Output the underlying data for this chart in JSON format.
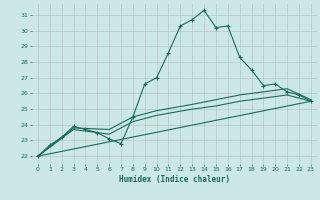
{
  "xlabel": "Humidex (Indice chaleur)",
  "background_color": "#cce8e4",
  "grid_color": "#b8c8c4",
  "line_color": "#1a6b5a",
  "xlim": [
    -0.5,
    23.5
  ],
  "ylim": [
    21.5,
    31.7
  ],
  "yticks": [
    22,
    23,
    24,
    25,
    26,
    27,
    28,
    29,
    30,
    31
  ],
  "xticks": [
    0,
    1,
    2,
    3,
    4,
    5,
    6,
    7,
    8,
    9,
    10,
    11,
    12,
    13,
    14,
    15,
    16,
    17,
    18,
    19,
    20,
    21,
    22,
    23
  ],
  "series1_x": [
    0,
    1,
    2,
    3,
    4,
    5,
    6,
    7,
    8,
    9,
    10,
    11,
    12,
    13,
    14,
    15,
    16,
    17,
    18,
    19,
    20,
    21,
    22,
    23
  ],
  "series1_y": [
    22.0,
    22.7,
    23.2,
    23.9,
    23.7,
    23.5,
    23.1,
    22.8,
    24.5,
    26.6,
    27.0,
    28.6,
    30.3,
    30.7,
    31.3,
    30.2,
    30.3,
    28.3,
    27.5,
    26.5,
    26.6,
    26.1,
    25.9,
    25.5
  ],
  "series2_x": [
    0,
    23
  ],
  "series2_y": [
    22.0,
    25.5
  ],
  "series3_x": [
    0,
    3,
    6,
    8,
    10,
    13,
    15,
    17,
    19,
    21,
    23
  ],
  "series3_y": [
    22.0,
    23.7,
    23.4,
    24.2,
    24.6,
    25.0,
    25.2,
    25.5,
    25.7,
    25.9,
    25.5
  ],
  "series4_x": [
    0,
    3,
    6,
    8,
    10,
    13,
    15,
    17,
    19,
    21,
    23
  ],
  "series4_y": [
    22.0,
    23.8,
    23.7,
    24.5,
    24.9,
    25.3,
    25.6,
    25.9,
    26.1,
    26.3,
    25.6
  ]
}
